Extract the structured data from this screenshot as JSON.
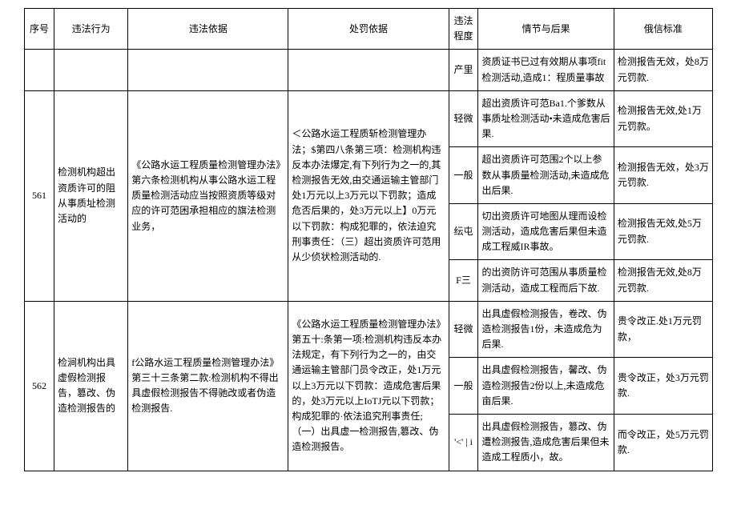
{
  "headers": {
    "seq": "序号",
    "behavior": "违法行为",
    "basis1": "违法依据",
    "basis2": "处罚依据",
    "level": "违法程度",
    "situation": "情节与后果",
    "standard": "俄信标准"
  },
  "rows": [
    {
      "seq": "",
      "behavior": "",
      "basis1": "",
      "basis2": "",
      "level": "产里",
      "situation": "资质证书已过有效期从事项fit检测活动,造成1：程质量事故",
      "standard": "检测报告无效，处8万元罚款."
    },
    {
      "seq": "561",
      "behavior": "检测机构超出资质许可的阻从事质址检测活动的",
      "basis1": "《公路水运工程质量检测管理办法》第六条检测机构从事公路水运工程质量检测活动应当按照资质等级对应的许可范困承担相应的旗法检测业务，",
      "basis2": "＜公路水运工程质斩检测管理办法；$第四八条第三项：检测机构违反本办法爆定,有下列行为之一的,其检测报告无效,由交通运输主管部门处1万元以上3万元以下罚款；造成危否后果的，处3万元以上】0万元以下罚款：构成犯罪的，依法迫究刑事责任：（三）超出资质许可范用从少侦状检测活动的.",
      "details": [
        {
          "level": "轻微",
          "situation": "超出资质许可范Ba1.个爹数从事质址检测活动•未造成危害后果.",
          "standard": "检测报告无效,处1万元罚款。"
        },
        {
          "level": "一般",
          "situation": "超出资质许可范围2个以上参数从事质量检测活动,未造成危出后果.",
          "standard": "检测报告无效，处3万元罚款."
        },
        {
          "level": "纭屯",
          "situation": "切出资质许可地图从理而设检测活动，造成危害后果但未造成工程威IR事故。",
          "standard": "检测报告无效,处5万元罚款."
        },
        {
          "level": "F三",
          "situation": "的出资防许可范围从事质量检测活动，造成工程而后下故.",
          "standard": "检测报告无效,处8万元罚款."
        }
      ]
    },
    {
      "seq": "562",
      "behavior": "检涧机构出具虚假检测报告，篡改、伪造检测报告的",
      "basis1": "f公路水运工程质量检测管理办法》第三十三条第二款:检测机构不得出具虚假检测报告不得驰改或者伪造检测报告.",
      "basis2": "《公路水运工程质量检测管理办法》第五十:条第一项:检测机构违反本办法规定，有下列行为之一的，由交通运输主管部门员令改正，处1万元以上3万元以下罚款：造成危害后果的，处3万元以上IoTJ元以下罚款；构成犯罪的·依法追究刑事责任;（一）出具虚一检测报告,篡改、伪造检测报告。",
      "details": [
        {
          "level": "轻微",
          "situation": "出具虚假检测报告，卷改、伪造检测报告1份，未造成危为后果.",
          "standard": "贵令改正.处1万元罚款，"
        },
        {
          "level": "一般",
          "situation": "出具虚假检测报告，馨改、伪造检测报告2份以上,未造成危亩后果.",
          "standard": "贵令改正，处3万元罚款."
        },
        {
          "level": "'<' | i",
          "situation": "出具虚假检测报告，篡改、伪遭检测报告,造成危害后果但未造成工程质小，故。",
          "standard": "而令改正，处5万元罚款."
        }
      ]
    }
  ]
}
